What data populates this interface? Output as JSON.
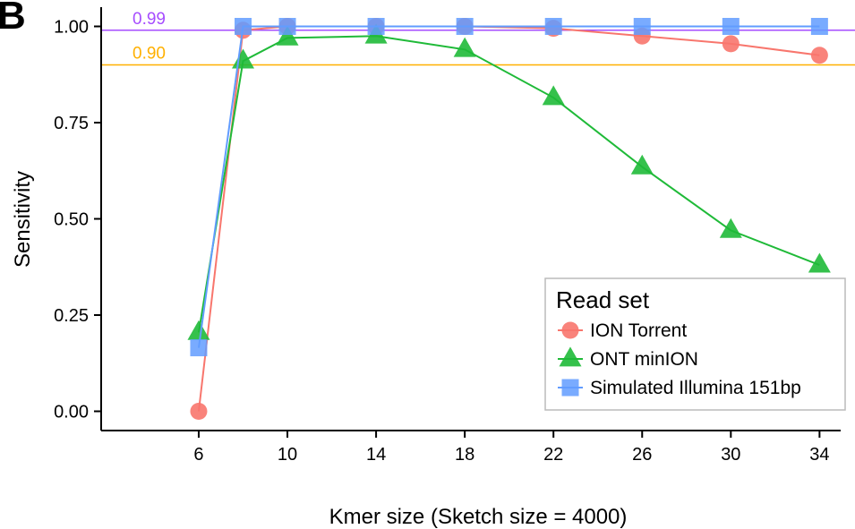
{
  "panel_label": "B",
  "chart_data": {
    "type": "line",
    "xlabel": "Kmer size (Sketch size = 4000)",
    "ylabel": "Sensitivity",
    "xlim": [
      1.6,
      35.6
    ],
    "ylim": [
      -0.05,
      1.05
    ],
    "xticks": [
      6,
      10,
      14,
      18,
      22,
      26,
      30,
      34
    ],
    "yticks": [
      0.0,
      0.25,
      0.5,
      0.75,
      1.0
    ],
    "xtick_labels": [
      "6",
      "10",
      "14",
      "18",
      "22",
      "26",
      "30",
      "34"
    ],
    "ytick_labels": [
      "0.00",
      "0.25",
      "0.50",
      "0.75",
      "1.00"
    ],
    "grid": false,
    "legend_position": "bottom-right",
    "legend_title": "Read set",
    "reference_lines": [
      {
        "label": "0.99",
        "y": 0.99,
        "color": "#a64dff"
      },
      {
        "label": "0.90",
        "y": 0.9,
        "color": "#ffb000"
      }
    ],
    "x": [
      6,
      8,
      10,
      14,
      18,
      22,
      26,
      30,
      34
    ],
    "series": [
      {
        "name": "ION Torrent",
        "marker": "circle",
        "color": "#f8766d",
        "values": [
          0.0,
          0.99,
          1.0,
          1.0,
          1.0,
          0.995,
          0.975,
          0.955,
          0.925
        ]
      },
      {
        "name": "ONT minION",
        "marker": "triangle",
        "color": "#1fba38",
        "values": [
          0.205,
          0.91,
          0.97,
          0.975,
          0.94,
          0.815,
          0.635,
          0.47,
          0.38
        ]
      },
      {
        "name": "Simulated Illumina 151bp",
        "marker": "square",
        "color": "#619cff",
        "values": [
          0.165,
          1.0,
          1.0,
          1.0,
          1.0,
          1.0,
          1.0,
          1.0,
          1.0
        ]
      }
    ]
  }
}
